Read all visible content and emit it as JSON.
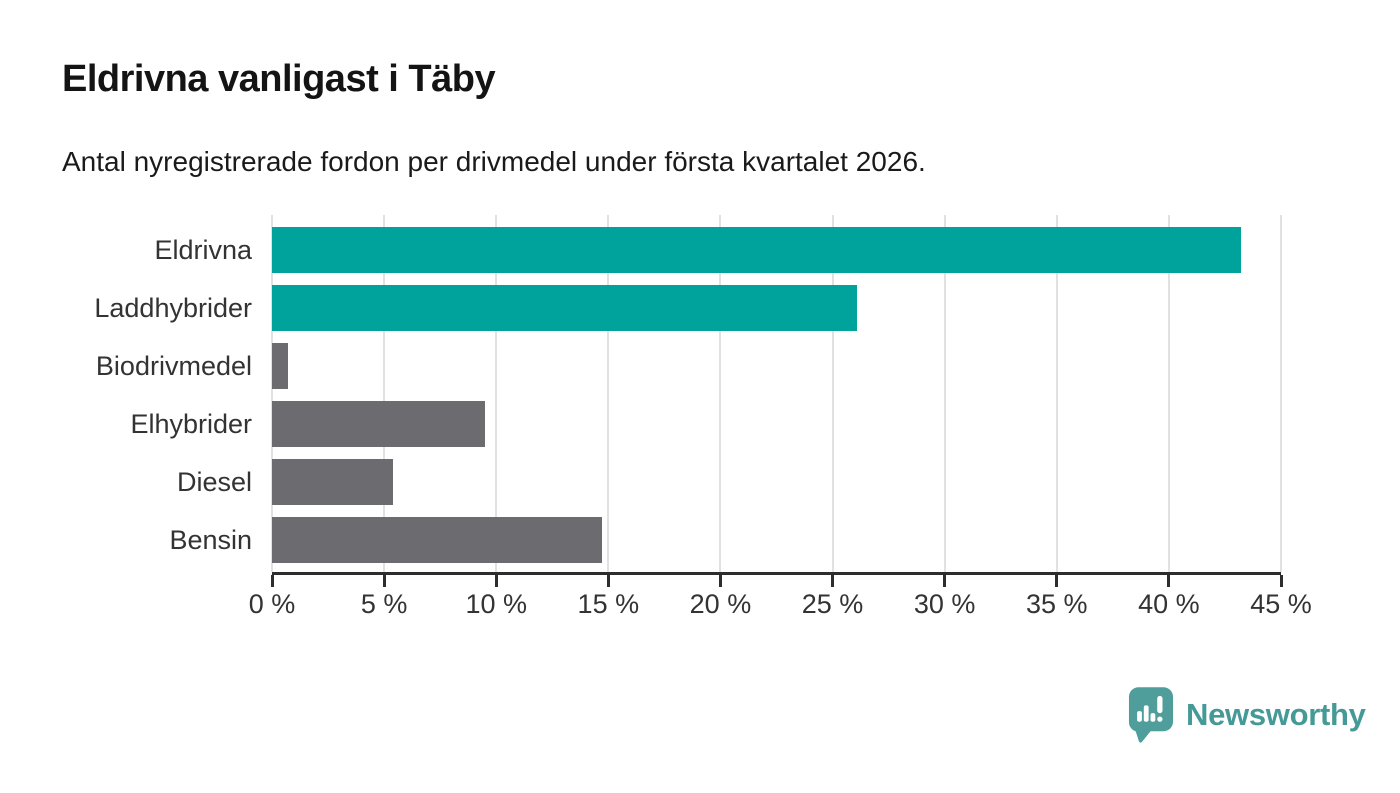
{
  "title": "Eldrivna vanligast i Täby",
  "subtitle": "Antal nyregistrerade fordon per drivmedel under första kvartalet 2026.",
  "chart_data": {
    "type": "bar",
    "orientation": "horizontal",
    "title": "Eldrivna vanligast i Täby",
    "subtitle": "Antal nyregistrerade fordon per drivmedel under första kvartalet 2026.",
    "categories": [
      "Eldrivna",
      "Laddhybrider",
      "Biodrivmedel",
      "Elhybrider",
      "Diesel",
      "Bensin"
    ],
    "values": [
      43.2,
      26.1,
      0.7,
      9.5,
      5.4,
      14.7
    ],
    "unit": "%",
    "bar_colors": [
      "#00a39b",
      "#00a39b",
      "#6c6c70",
      "#6c6c70",
      "#6c6c70",
      "#6c6c70"
    ],
    "highlight_color": "#00a39b",
    "default_color": "#6c6c70",
    "xlabel": "",
    "ylabel": "",
    "xlim": [
      0,
      45
    ],
    "x_ticks": [
      0,
      5,
      10,
      15,
      20,
      25,
      30,
      35,
      40,
      45
    ],
    "x_tick_labels": [
      "0 %",
      "5 %",
      "10 %",
      "15 %",
      "20 %",
      "25 %",
      "30 %",
      "35 %",
      "40 %",
      "45 %"
    ],
    "grid": "vertical-only",
    "legend": "none",
    "gridline_color": "#e1e1e1",
    "axis_color": "#2d2d2d",
    "label_color": "#333333"
  },
  "branding": {
    "logo_text": "Newsworthy",
    "logo_text_color": "#459a97",
    "logo_icon": "newsworthy-pin-chart-icon",
    "logo_icon_color": "#4f9e9b"
  }
}
